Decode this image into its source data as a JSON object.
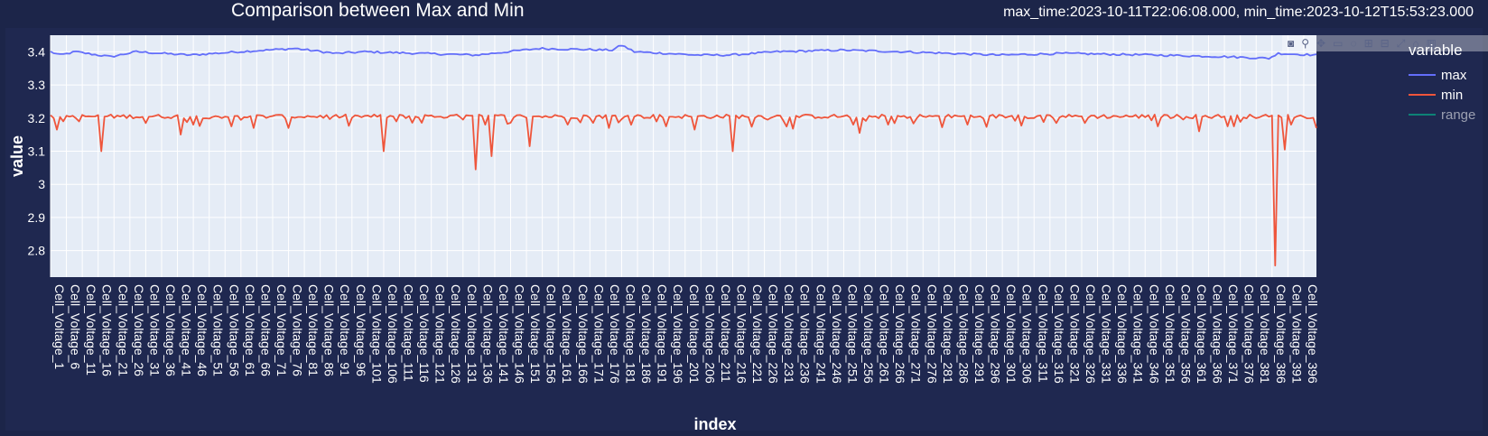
{
  "header": {
    "title": "Comparison between Max and Min",
    "time_info": "max_time:2023-10-11T22:06:08.000, min_time:2023-10-12T15:53:23.000"
  },
  "modebar": {
    "icons": [
      "camera-icon",
      "zoom-icon",
      "pan-icon",
      "select-icon",
      "lasso-icon",
      "zoom-in-icon",
      "zoom-out-icon",
      "autoscale-icon",
      "reset-axes-icon",
      "plotly-logo-icon"
    ]
  },
  "legend": {
    "title": "variable",
    "items": [
      {
        "label": "max",
        "color": "#636efa",
        "visible": true
      },
      {
        "label": "min",
        "color": "#ef553b",
        "visible": true
      },
      {
        "label": "range",
        "color": "#00cc96",
        "visible": false
      }
    ]
  },
  "colors": {
    "plot_bg": "#e5ecf6",
    "paper_bg": "#1f2850",
    "grid": "#ffffff"
  },
  "chart_data": {
    "type": "line",
    "title": "Comparison between Max and Min",
    "xlabel": "index",
    "ylabel": "value",
    "ylim": [
      2.72,
      3.45
    ],
    "yticks": [
      2.8,
      2.9,
      3,
      3.1,
      3.2,
      3.3,
      3.4
    ],
    "ytick_labels": [
      "2.8",
      "2.9",
      "3",
      "3.1",
      "3.2",
      "3.3",
      "3.4"
    ],
    "x_count": 400,
    "x_label_prefix": "Cell_Voltage_",
    "x_tick_every": 5,
    "grid": true,
    "legend_position": "right",
    "series": [
      {
        "name": "max",
        "color": "#636efa",
        "baseline": 3.395,
        "noise": 0.006,
        "points": [
          [
            1,
            3.4
          ],
          [
            4,
            3.39
          ],
          [
            9,
            3.4
          ],
          [
            16,
            3.39
          ],
          [
            20,
            3.385
          ],
          [
            28,
            3.4
          ],
          [
            45,
            3.39
          ],
          [
            60,
            3.4
          ],
          [
            78,
            3.41
          ],
          [
            91,
            3.395
          ],
          [
            100,
            3.4
          ],
          [
            135,
            3.39
          ],
          [
            155,
            3.41
          ],
          [
            178,
            3.405
          ],
          [
            181,
            3.42
          ],
          [
            185,
            3.4
          ],
          [
            205,
            3.39
          ],
          [
            215,
            3.39
          ],
          [
            230,
            3.4
          ],
          [
            250,
            3.405
          ],
          [
            270,
            3.4
          ],
          [
            300,
            3.39
          ],
          [
            320,
            3.395
          ],
          [
            350,
            3.39
          ],
          [
            372,
            3.385
          ],
          [
            385,
            3.38
          ],
          [
            388,
            3.395
          ],
          [
            400,
            3.39
          ]
        ]
      },
      {
        "name": "min",
        "color": "#ef553b",
        "baseline": 3.205,
        "noise": 0.012,
        "dips": [
          [
            3,
            3.165
          ],
          [
            10,
            3.19
          ],
          [
            17,
            3.1
          ],
          [
            31,
            3.185
          ],
          [
            42,
            3.15
          ],
          [
            46,
            3.18
          ],
          [
            58,
            3.175
          ],
          [
            65,
            3.17
          ],
          [
            76,
            3.17
          ],
          [
            106,
            3.1
          ],
          [
            110,
            3.19
          ],
          [
            135,
            3.045
          ],
          [
            138,
            3.18
          ],
          [
            140,
            3.085
          ],
          [
            152,
            3.115
          ],
          [
            164,
            3.18
          ],
          [
            177,
            3.17
          ],
          [
            195,
            3.175
          ],
          [
            204,
            3.165
          ],
          [
            216,
            3.1
          ],
          [
            227,
            3.195
          ],
          [
            256,
            3.155
          ],
          [
            265,
            3.18
          ],
          [
            290,
            3.18
          ],
          [
            318,
            3.185
          ],
          [
            327,
            3.185
          ],
          [
            350,
            3.175
          ],
          [
            363,
            3.16
          ],
          [
            372,
            3.175
          ],
          [
            387,
            2.755
          ],
          [
            390,
            3.105
          ],
          [
            392,
            3.18
          ],
          [
            400,
            3.17
          ]
        ]
      },
      {
        "name": "range",
        "color": "#00cc96",
        "visible": false
      }
    ]
  }
}
